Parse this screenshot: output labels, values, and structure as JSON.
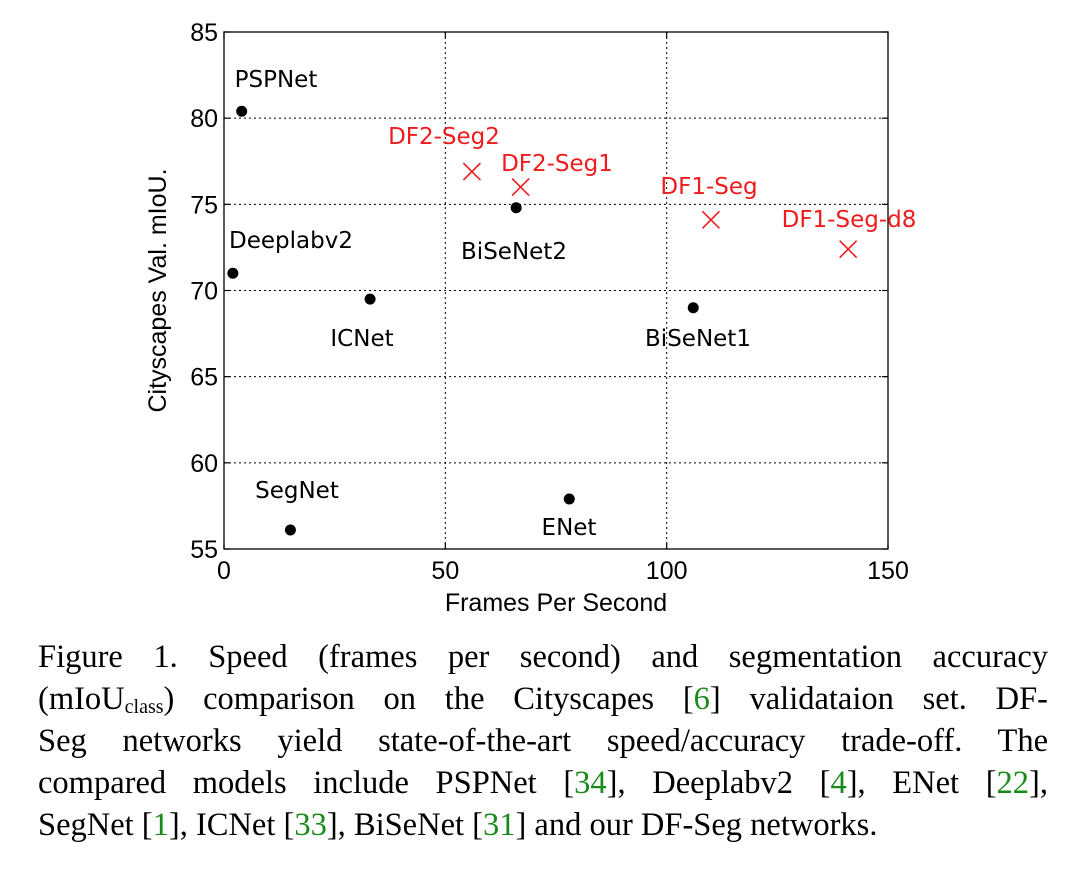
{
  "chart_data": {
    "type": "scatter",
    "title": "",
    "xlabel": "Frames Per Second",
    "ylabel": "Cityscapes Val. mIoU.",
    "xlim": [
      0,
      150
    ],
    "ylim": [
      55,
      85
    ],
    "xticks": [
      0,
      50,
      100,
      150
    ],
    "yticks": [
      55,
      60,
      65,
      70,
      75,
      80,
      85
    ],
    "grid": true,
    "points": [
      {
        "label": "PSPNet",
        "x": 4,
        "y": 80.4,
        "group": "compared",
        "label_pos": "above"
      },
      {
        "label": "Deeplabv2",
        "x": 2,
        "y": 71.0,
        "group": "compared",
        "label_pos": "above"
      },
      {
        "label": "ICNet",
        "x": 33,
        "y": 69.5,
        "group": "compared",
        "label_pos": "below"
      },
      {
        "label": "SegNet",
        "x": 15,
        "y": 56.1,
        "group": "compared",
        "label_pos": "above"
      },
      {
        "label": "ENet",
        "x": 78,
        "y": 57.9,
        "group": "compared",
        "label_pos": "below"
      },
      {
        "label": "BiSeNet2",
        "x": 66,
        "y": 74.8,
        "group": "compared",
        "label_pos": "below"
      },
      {
        "label": "BiSeNet1",
        "x": 106,
        "y": 69.0,
        "group": "compared",
        "label_pos": "below"
      },
      {
        "label": "DF2-Seg2",
        "x": 56,
        "y": 76.9,
        "group": "ours",
        "label_pos": "above-left"
      },
      {
        "label": "DF2-Seg1",
        "x": 67,
        "y": 76.0,
        "group": "ours",
        "label_pos": "above"
      },
      {
        "label": "DF1-Seg",
        "x": 110,
        "y": 74.1,
        "group": "ours",
        "label_pos": "above"
      },
      {
        "label": "DF1-Seg-d8",
        "x": 141,
        "y": 72.4,
        "group": "ours",
        "label_pos": "above"
      }
    ],
    "colors": {
      "compared": "#000000",
      "ours": "#ee1c1c"
    },
    "markers": {
      "compared": "dot",
      "ours": "x"
    }
  },
  "caption": {
    "lines": [
      [
        {
          "t": "Figure 1. Speed (frames per second) and segmentation accuracy"
        }
      ],
      [
        {
          "t": "(mIoU"
        },
        {
          "t": "class",
          "sub": true
        },
        {
          "t": ") comparison on the Cityscapes ["
        },
        {
          "t": "6",
          "ref": true
        },
        {
          "t": "] validataion set. DF-"
        }
      ],
      [
        {
          "t": "Seg networks yield state-of-the-art speed/accuracy trade-off. The"
        }
      ],
      [
        {
          "t": "compared models include PSPNet ["
        },
        {
          "t": "34",
          "ref": true
        },
        {
          "t": "], Deeplabv2 ["
        },
        {
          "t": "4",
          "ref": true
        },
        {
          "t": "], ENet ["
        },
        {
          "t": "22",
          "ref": true
        },
        {
          "t": "],"
        }
      ],
      [
        {
          "t": "SegNet ["
        },
        {
          "t": "1",
          "ref": true
        },
        {
          "t": "], ICNet ["
        },
        {
          "t": "33",
          "ref": true
        },
        {
          "t": "], BiSeNet ["
        },
        {
          "t": "31",
          "ref": true
        },
        {
          "t": "] and our DF-Seg networks."
        }
      ]
    ]
  }
}
